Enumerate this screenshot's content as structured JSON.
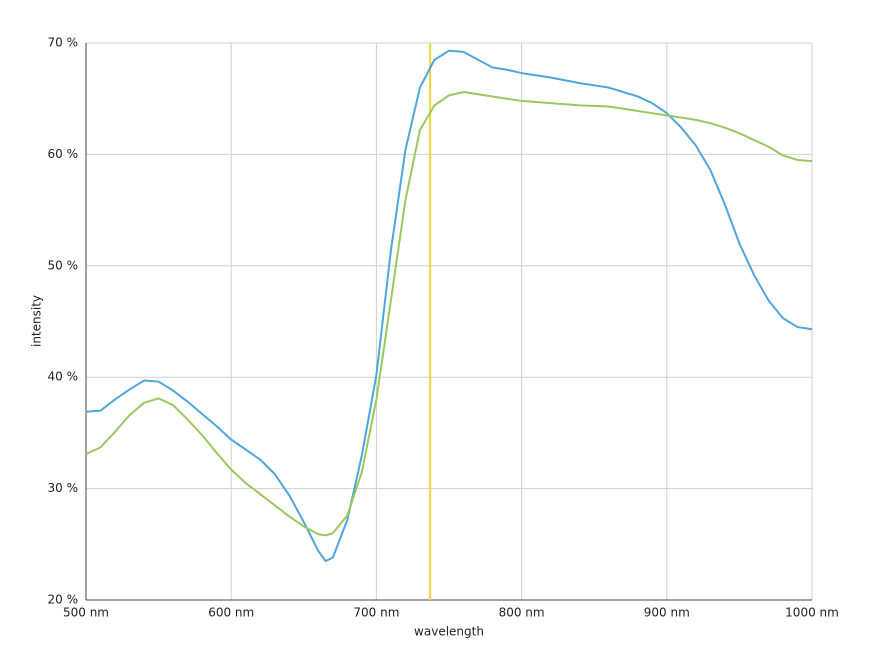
{
  "chart_data": {
    "type": "line",
    "xlabel": "wavelength",
    "ylabel": "intensity",
    "x": [
      500,
      510,
      520,
      530,
      540,
      550,
      560,
      570,
      580,
      590,
      600,
      610,
      620,
      630,
      640,
      650,
      660,
      665,
      670,
      680,
      690,
      700,
      710,
      720,
      730,
      740,
      750,
      760,
      770,
      780,
      790,
      800,
      820,
      840,
      860,
      880,
      890,
      900,
      910,
      920,
      930,
      940,
      950,
      960,
      970,
      980,
      990,
      1000
    ],
    "series": [
      {
        "color": "#4ea6dc",
        "values": [
          36.9,
          37.0,
          38.0,
          38.9,
          39.7,
          39.6,
          38.8,
          37.8,
          36.7,
          35.6,
          34.4,
          33.5,
          32.6,
          31.3,
          29.4,
          27.0,
          24.4,
          23.5,
          23.8,
          27.2,
          33.0,
          40.2,
          51.4,
          60.4,
          66.0,
          68.5,
          69.3,
          69.2,
          68.5,
          67.8,
          67.6,
          67.3,
          66.9,
          66.4,
          66.0,
          65.2,
          64.6,
          63.7,
          62.4,
          60.8,
          58.6,
          55.5,
          52.0,
          49.2,
          46.9,
          45.3,
          44.5,
          44.3
        ]
      },
      {
        "color": "#9bc75e",
        "values": [
          33.1,
          33.7,
          35.1,
          36.6,
          37.7,
          38.1,
          37.5,
          36.2,
          34.8,
          33.2,
          31.7,
          30.5,
          29.5,
          28.5,
          27.5,
          26.6,
          25.9,
          25.8,
          26.0,
          27.6,
          31.5,
          38.0,
          46.9,
          55.9,
          62.2,
          64.4,
          65.3,
          65.6,
          65.4,
          65.2,
          65.0,
          64.8,
          64.6,
          64.4,
          64.3,
          63.9,
          63.7,
          63.5,
          63.3,
          63.1,
          62.8,
          62.4,
          61.9,
          61.3,
          60.7,
          59.9,
          59.5,
          59.4
        ]
      }
    ],
    "vline": {
      "x": 737,
      "color": "#f2d33c"
    },
    "xlim": [
      500,
      1000
    ],
    "xticks": [
      {
        "value": 500,
        "label": "500 nm"
      },
      {
        "value": 600,
        "label": "600 nm"
      },
      {
        "value": 700,
        "label": "700 nm"
      },
      {
        "value": 800,
        "label": "800 nm"
      },
      {
        "value": 900,
        "label": "900 nm"
      },
      {
        "value": 1000,
        "label": "1000 nm"
      }
    ],
    "ylim": [
      20,
      70
    ],
    "yticks": [
      {
        "value": 20,
        "label": "20 %"
      },
      {
        "value": 30,
        "label": "30 %"
      },
      {
        "value": 40,
        "label": "40 %"
      },
      {
        "value": 50,
        "label": "50 %"
      },
      {
        "value": 60,
        "label": "60 %"
      },
      {
        "value": 70,
        "label": "70 %"
      }
    ],
    "grid": true
  }
}
